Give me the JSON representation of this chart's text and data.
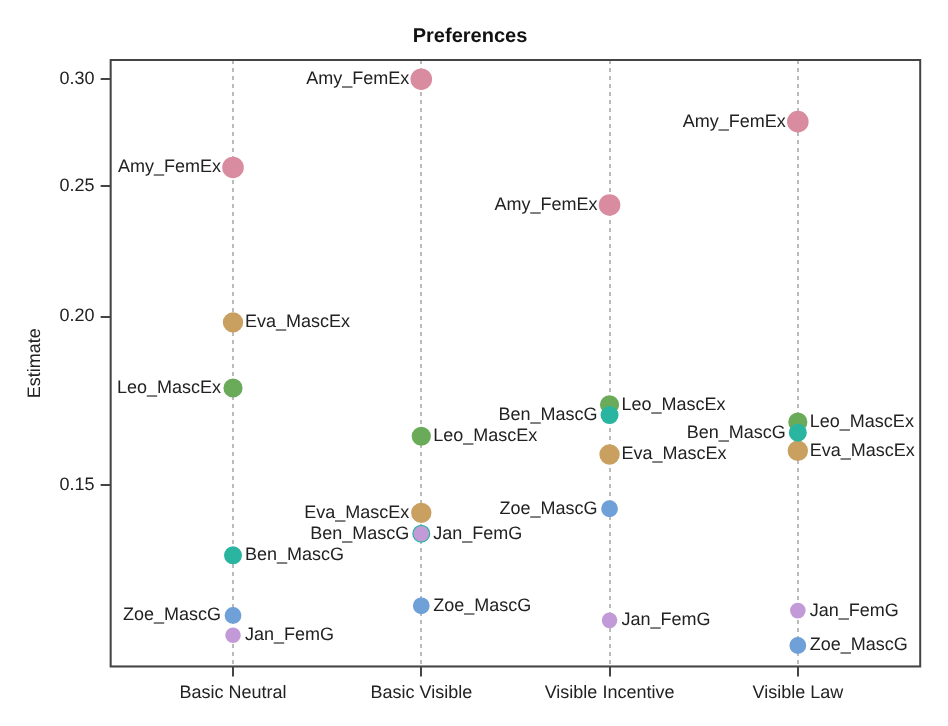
{
  "chart_data": {
    "type": "scatter",
    "title": "Preferences",
    "ylabel": "Estimate",
    "categories": [
      "Basic Neutral",
      "Basic Visible",
      "Visible Incentive",
      "Visible Law"
    ],
    "series": [
      {
        "name": "Amy_FemEx",
        "color": "#d98ca0",
        "values": [
          0.258,
          0.3,
          0.242,
          0.279
        ]
      },
      {
        "name": "Eva_MascEx",
        "color": "#c9a060",
        "values": [
          0.198,
          0.143,
          0.158,
          0.159
        ]
      },
      {
        "name": "Leo_MascEx",
        "color": "#6aab5a",
        "values": [
          0.177,
          0.163,
          0.172,
          0.167
        ]
      },
      {
        "name": "Ben_MascG",
        "color": "#2ab5a0",
        "values": [
          0.133,
          0.138,
          0.169,
          0.164
        ]
      },
      {
        "name": "Zoe_MascG",
        "color": "#6fa0d8",
        "values": [
          0.12,
          0.122,
          0.144,
          0.114
        ]
      },
      {
        "name": "Jan_FemG",
        "color": "#c39ad8",
        "values": [
          0.116,
          0.138,
          0.119,
          0.121
        ]
      }
    ],
    "log": "y",
    "ylim": [
      0.11,
      0.31
    ],
    "yticks": [
      0.15,
      {
        "value": 0.2,
        "label": "0.20"
      },
      0.25,
      {
        "value": 0.3,
        "label": "0.30"
      }
    ],
    "grid": "x",
    "marker": "circle",
    "legend": false
  }
}
